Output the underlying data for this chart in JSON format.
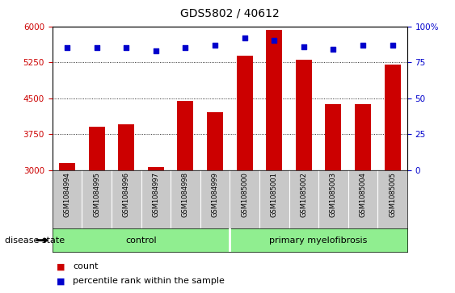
{
  "title": "GDS5802 / 40612",
  "samples": [
    "GSM1084994",
    "GSM1084995",
    "GSM1084996",
    "GSM1084997",
    "GSM1084998",
    "GSM1084999",
    "GSM1085000",
    "GSM1085001",
    "GSM1085002",
    "GSM1085003",
    "GSM1085004",
    "GSM1085005"
  ],
  "counts": [
    3150,
    3900,
    3950,
    3060,
    4450,
    4200,
    5380,
    5920,
    5300,
    4380,
    4380,
    5200
  ],
  "percentiles": [
    85,
    85,
    85,
    83,
    85,
    87,
    92,
    90,
    86,
    84,
    87,
    87
  ],
  "bar_color": "#CC0000",
  "dot_color": "#0000CC",
  "ylim_left": [
    3000,
    6000
  ],
  "ylim_right": [
    0,
    100
  ],
  "yticks_left": [
    3000,
    3750,
    4500,
    5250,
    6000
  ],
  "yticks_right": [
    0,
    25,
    50,
    75,
    100
  ],
  "ytick_labels_right": [
    "0",
    "25",
    "50",
    "75",
    "100%"
  ],
  "ctrl_label": "control",
  "pm_label": "primary myelofibrosis",
  "group_color": "#90EE90",
  "sample_label_bg": "#C8C8C8",
  "disease_state_label": "disease state",
  "legend_count_label": "count",
  "legend_pct_label": "percentile rank within the sample",
  "title_fontsize": 10,
  "tick_fontsize": 7.5,
  "sample_fontsize": 6,
  "group_fontsize": 8,
  "legend_fontsize": 8,
  "disease_state_fontsize": 8
}
